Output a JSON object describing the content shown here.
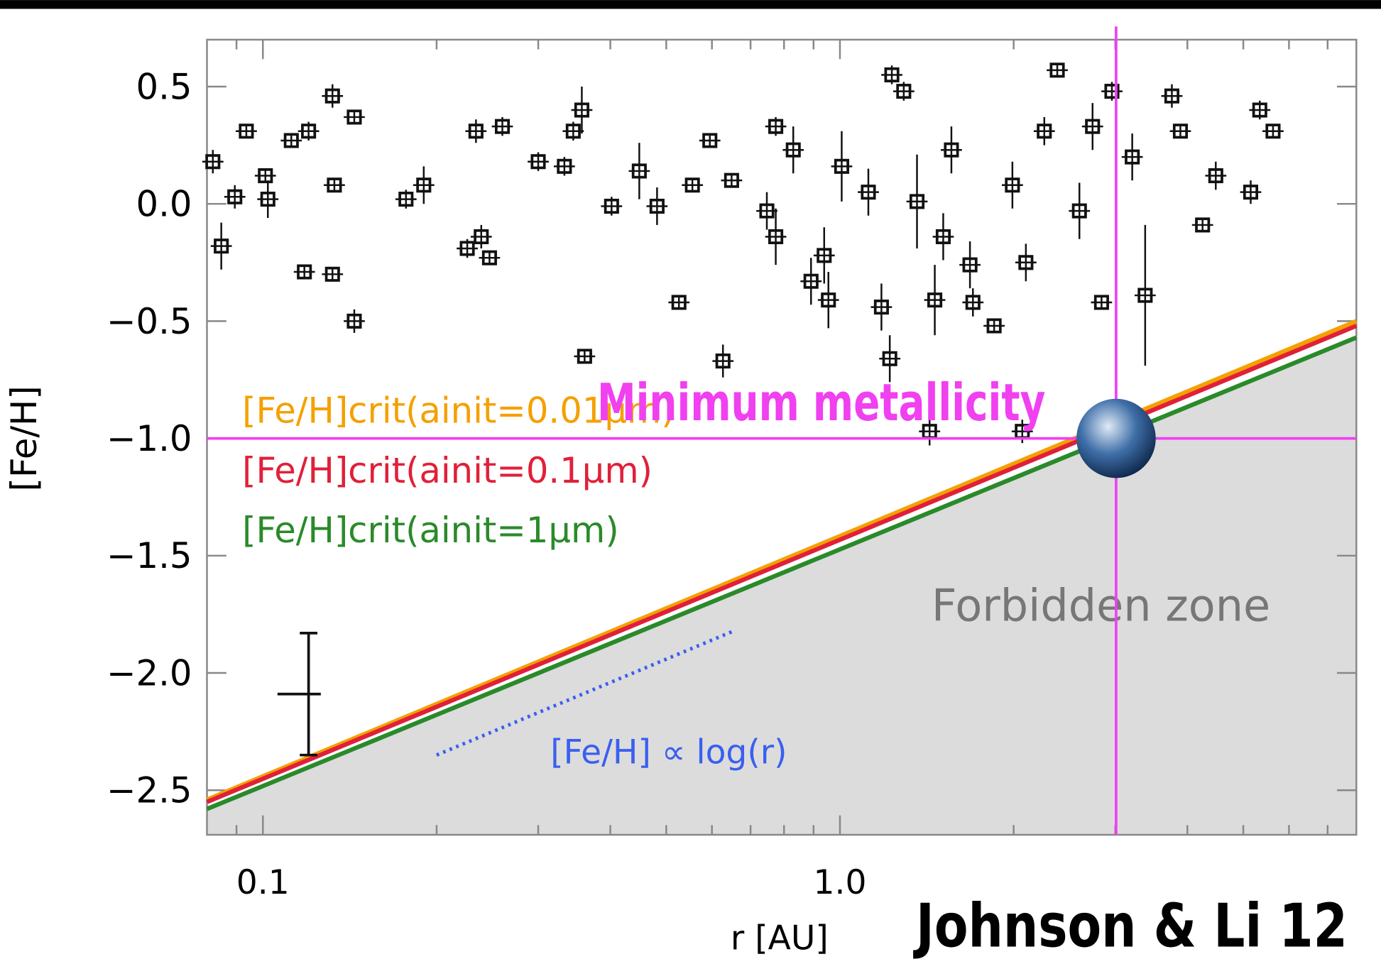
{
  "chart_data": {
    "type": "scatter",
    "xlabel": "r [AU]",
    "ylabel": "[Fe/H]",
    "xscale": "log",
    "xlim": [
      0.08,
      7.85
    ],
    "ylim": [
      -2.69,
      0.7
    ],
    "xticks": [
      0.1,
      {
        "value": 1,
        "label": "1.0"
      }
    ],
    "xminorticks": [
      0.09,
      0.2,
      0.3,
      0.4,
      0.5,
      0.6,
      0.7,
      0.8,
      0.9,
      2,
      3,
      4,
      5,
      6,
      7
    ],
    "yticks": [
      {
        "value": 0.5,
        "label": "0.5"
      },
      {
        "value": 0,
        "label": "0.0"
      },
      {
        "value": -0.5,
        "label": "−0.5"
      },
      {
        "value": -1,
        "label": "−1.0"
      },
      {
        "value": -1.5,
        "label": "−1.5"
      },
      {
        "value": -2,
        "label": "−2.0"
      },
      {
        "value": -2.5,
        "label": "−2.5"
      }
    ],
    "points": {
      "color": "#111111",
      "x": [
        0.0819,
        0.0847,
        0.0894,
        0.0936,
        0.101,
        0.102,
        0.112,
        0.12,
        0.132,
        0.133,
        0.144,
        0.144,
        0.118,
        0.132,
        0.177,
        0.19,
        0.226,
        0.239,
        0.247,
        0.234,
        0.26,
        0.3,
        0.333,
        0.345,
        0.357,
        0.361,
        0.402,
        0.482,
        0.449,
        0.526,
        0.555,
        0.595,
        0.627,
        0.649,
        0.747,
        0.774,
        0.774,
        0.83,
        0.891,
        0.939,
        0.955,
        1.007,
        1.12,
        1.18,
        1.22,
        1.23,
        1.29,
        1.36,
        1.43,
        1.46,
        1.51,
        1.56,
        1.68,
        1.7,
        1.85,
        1.99,
        2.1,
        2.26,
        2.38,
        2.6,
        2.74,
        2.84,
        2.96,
        3.21,
        3.38,
        3.76,
        3.89,
        4.25,
        4.48,
        5.34,
        5.63,
        5.15,
        2.07
      ],
      "values": [
        0.18,
        -0.18,
        0.03,
        0.31,
        0.12,
        0.02,
        0.27,
        0.31,
        0.46,
        0.08,
        -0.5,
        0.37,
        -0.29,
        -0.3,
        0.02,
        0.08,
        -0.19,
        -0.14,
        -0.23,
        0.31,
        0.33,
        0.18,
        0.16,
        0.31,
        0.4,
        -0.65,
        -0.01,
        -0.01,
        0.14,
        -0.42,
        0.08,
        0.27,
        -0.67,
        0.1,
        -0.03,
        -0.14,
        0.33,
        0.23,
        -0.33,
        -0.22,
        -0.41,
        0.16,
        0.05,
        -0.44,
        -0.66,
        0.55,
        0.48,
        0.01,
        -0.97,
        -0.41,
        -0.14,
        0.23,
        -0.26,
        -0.42,
        -0.52,
        0.08,
        -0.25,
        0.31,
        0.57,
        -0.03,
        0.33,
        -0.42,
        0.48,
        0.2,
        -0.39,
        0.46,
        0.31,
        -0.09,
        0.12,
        0.4,
        0.31,
        0.05,
        -0.97
      ],
      "yerr": [
        0.05,
        0.1,
        0.05,
        0.03,
        0.03,
        0.08,
        0.03,
        0.04,
        0.05,
        0.03,
        0.05,
        0.03,
        0.03,
        0.03,
        0.04,
        0.08,
        0.04,
        0.05,
        0.03,
        0.05,
        0.04,
        0.04,
        0.04,
        0.04,
        0.1,
        0.03,
        0.04,
        0.08,
        0.12,
        0.03,
        0.03,
        0.03,
        0.07,
        0.03,
        0.08,
        0.12,
        0.04,
        0.1,
        0.1,
        0.12,
        0.12,
        0.15,
        0.1,
        0.1,
        0.1,
        0.04,
        0.04,
        0.2,
        0.06,
        0.15,
        0.1,
        0.1,
        0.1,
        0.06,
        0.03,
        0.1,
        0.08,
        0.06,
        0.03,
        0.12,
        0.1,
        0.03,
        0.04,
        0.1,
        0.3,
        0.05,
        0.03,
        0.03,
        0.06,
        0.04,
        0.03,
        0.05,
        0.05
      ]
    },
    "error_example": {
      "x": 0.12,
      "y": -2.09,
      "yerr": 0.26,
      "xerr": [
        0.106,
        0.126
      ],
      "color": "#111111"
    },
    "series": [
      {
        "name": "[Fe/H]crit(ainit=0.01μm)",
        "color": "#f5a000",
        "x": [
          0.08,
          7.85
        ],
        "values": [
          -2.54,
          -0.5
        ]
      },
      {
        "name": "[Fe/H]crit(ainit=0.1μm)",
        "color": "#e0203a",
        "x": [
          0.08,
          7.85
        ],
        "values": [
          -2.55,
          -0.52
        ]
      },
      {
        "name": "[Fe/H]crit(ainit=1μm)",
        "color": "#2a8a2a",
        "x": [
          0.08,
          7.85
        ],
        "values": [
          -2.58,
          -0.57
        ]
      }
    ],
    "forbidden_zone_color": "#dcdcdc",
    "trend": {
      "color": "#3a5ff0",
      "x": [
        0.2,
        0.656
      ],
      "values": [
        -2.35,
        -1.82
      ]
    },
    "hline": -1.0,
    "vline": 3.01,
    "guide_color": "#f040f0",
    "annotations": [
      "Minimum metallicity",
      "Forbidden zone",
      "[Fe/H] ∝ log(r)",
      "Johnson & Li 12"
    ]
  }
}
